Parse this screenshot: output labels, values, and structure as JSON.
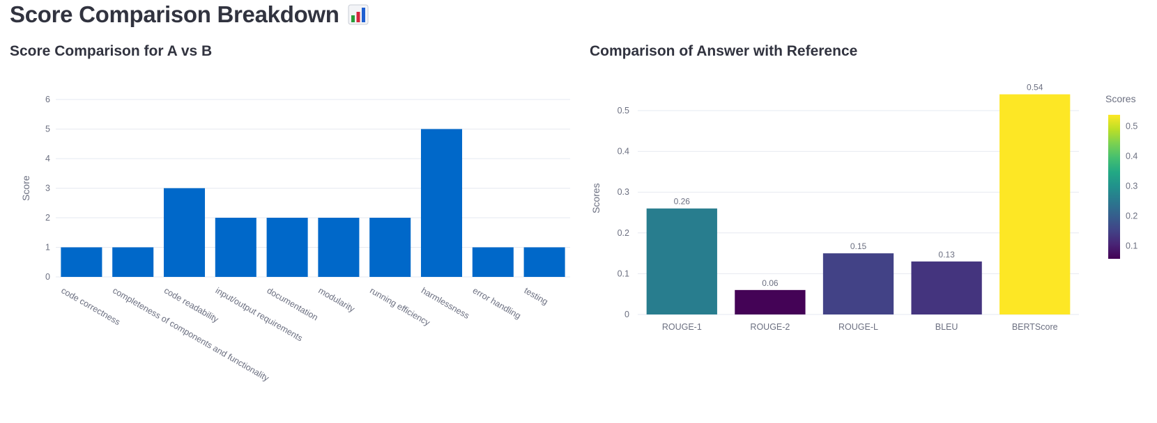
{
  "page": {
    "title": "Score Comparison Breakdown",
    "title_icon": "bar-chart-icon"
  },
  "colors": {
    "bar_blue": "#0068c9",
    "text": "#31333f",
    "axis_text": "#6b6f80",
    "grid": "#e6e9f0"
  },
  "chart_data": [
    {
      "type": "bar",
      "title": "Score Comparison for A vs B",
      "xlabel": "",
      "ylabel": "Score",
      "ylim": [
        0,
        6
      ],
      "yticks": [
        "0",
        "1",
        "2",
        "3",
        "4",
        "5",
        "6"
      ],
      "categories": [
        "code correctness",
        "completeness of components and functionality",
        "code readability",
        "input/output requirements",
        "documentation",
        "modularity",
        "running efficiency",
        "harmlessness",
        "error handling",
        "testing"
      ],
      "values": [
        1,
        1,
        3,
        2,
        2,
        2,
        2,
        5,
        1,
        1
      ],
      "bar_color": "#0068c9"
    },
    {
      "type": "bar",
      "title": "Comparison of Answer with Reference",
      "xlabel": "",
      "ylabel": "Scores",
      "ylim": [
        0,
        0.57
      ],
      "yticks": [
        "0",
        "0.1",
        "0.2",
        "0.3",
        "0.4",
        "0.5"
      ],
      "categories": [
        "ROUGE-1",
        "ROUGE-2",
        "ROUGE-L",
        "BLEU",
        "BERTScore"
      ],
      "values": [
        0.26,
        0.06,
        0.15,
        0.13,
        0.54
      ],
      "data_labels": [
        "0.26",
        "0.06",
        "0.15",
        "0.13",
        "0.54"
      ],
      "colorscale": "viridis",
      "colorbar": {
        "title": "Scores",
        "ticks": [
          "0.1",
          "0.2",
          "0.3",
          "0.4",
          "0.5"
        ],
        "range": [
          0.0573,
          0.5388
        ]
      }
    }
  ]
}
